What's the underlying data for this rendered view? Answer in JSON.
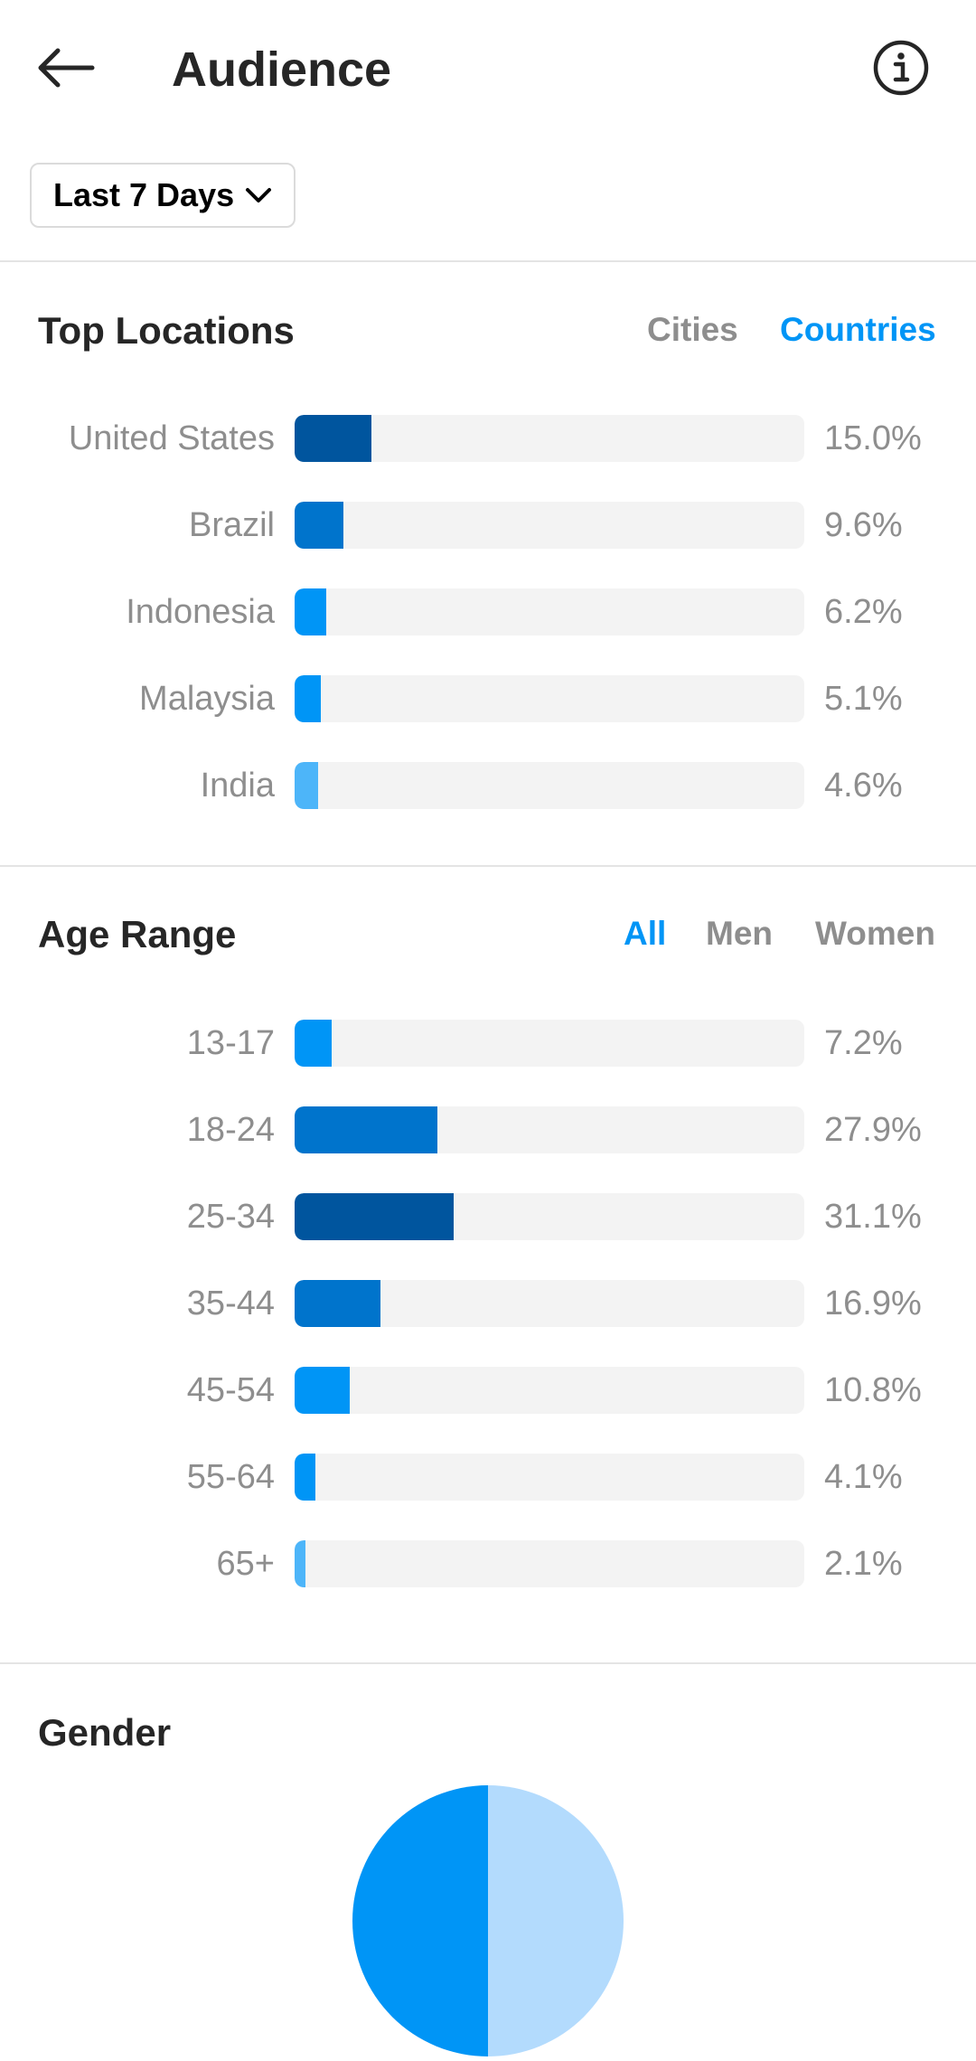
{
  "header": {
    "title": "Audience",
    "back_icon": "arrow-left-icon",
    "info_icon": "info-icon"
  },
  "filter": {
    "label": "Last 7 Days",
    "icon": "chevron-down-icon"
  },
  "top_locations": {
    "title": "Top Locations",
    "tabs": [
      {
        "label": "Cities",
        "active": false
      },
      {
        "label": "Countries",
        "active": true
      }
    ],
    "items": [
      {
        "label": "United States",
        "value": 15.0,
        "display": "15.0%",
        "color": "#00559e"
      },
      {
        "label": "Brazil",
        "value": 9.6,
        "display": "9.6%",
        "color": "#0074cc"
      },
      {
        "label": "Indonesia",
        "value": 6.2,
        "display": "6.2%",
        "color": "#0095f6"
      },
      {
        "label": "Malaysia",
        "value": 5.1,
        "display": "5.1%",
        "color": "#0095f6"
      },
      {
        "label": "India",
        "value": 4.6,
        "display": "4.6%",
        "color": "#4db5f9"
      }
    ]
  },
  "age_range": {
    "title": "Age Range",
    "tabs": [
      {
        "label": "All",
        "active": true
      },
      {
        "label": "Men",
        "active": false
      },
      {
        "label": "Women",
        "active": false
      }
    ],
    "items": [
      {
        "label": "13-17",
        "value": 7.2,
        "display": "7.2%",
        "color": "#0095f6"
      },
      {
        "label": "18-24",
        "value": 27.9,
        "display": "27.9%",
        "color": "#0074cc"
      },
      {
        "label": "25-34",
        "value": 31.1,
        "display": "31.1%",
        "color": "#00559e"
      },
      {
        "label": "35-44",
        "value": 16.9,
        "display": "16.9%",
        "color": "#0074cc"
      },
      {
        "label": "45-54",
        "value": 10.8,
        "display": "10.8%",
        "color": "#0095f6"
      },
      {
        "label": "55-64",
        "value": 4.1,
        "display": "4.1%",
        "color": "#0095f6"
      },
      {
        "label": "65+",
        "value": 2.1,
        "display": "2.1%",
        "color": "#4db5f9"
      }
    ]
  },
  "gender": {
    "title": "Gender",
    "slices": [
      {
        "value": 50,
        "color": "#0095f6"
      },
      {
        "value": 50,
        "color": "#b3dbfd"
      }
    ]
  }
}
